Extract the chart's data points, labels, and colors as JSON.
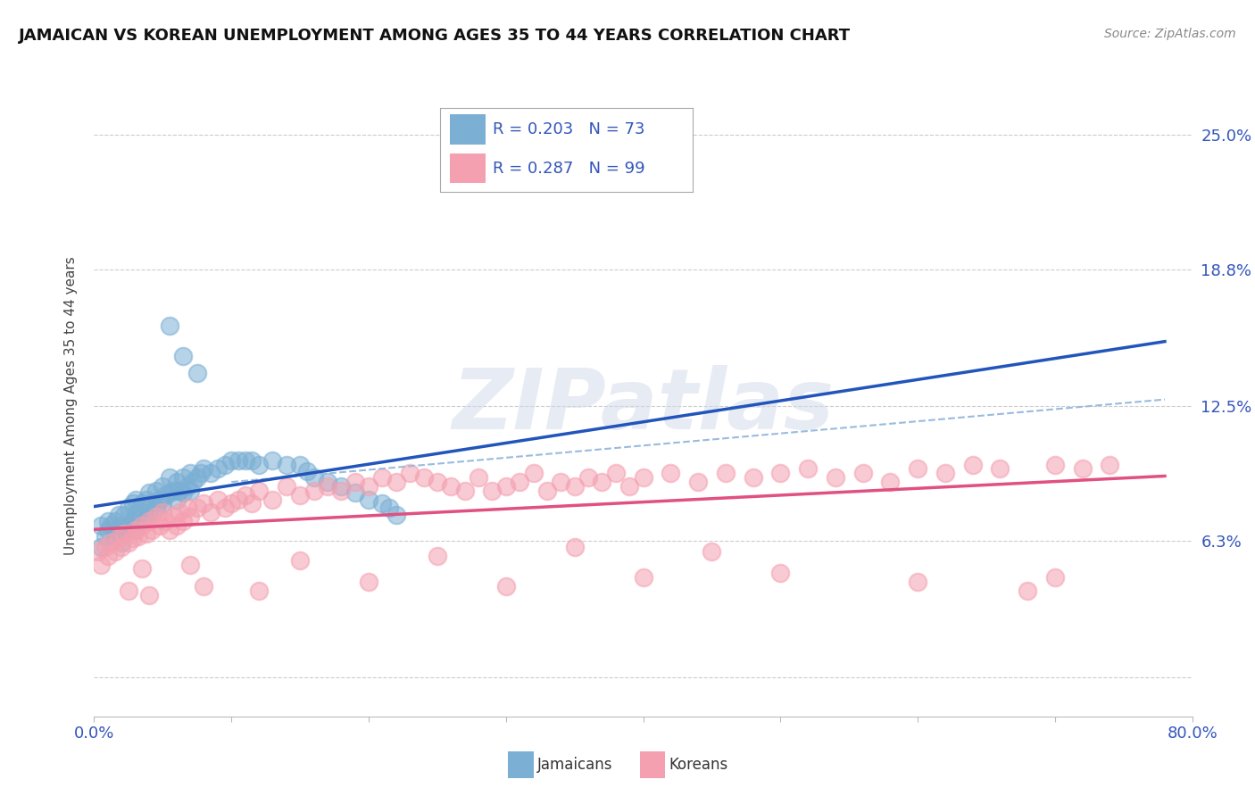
{
  "title": "JAMAICAN VS KOREAN UNEMPLOYMENT AMONG AGES 35 TO 44 YEARS CORRELATION CHART",
  "source": "Source: ZipAtlas.com",
  "ylabel": "Unemployment Among Ages 35 to 44 years",
  "xlim": [
    0.0,
    0.8
  ],
  "ylim": [
    -0.018,
    0.268
  ],
  "ytick_positions": [
    0.0,
    0.063,
    0.125,
    0.188,
    0.25
  ],
  "ytick_labels_right": [
    "",
    "6.3%",
    "12.5%",
    "18.8%",
    "25.0%"
  ],
  "jamaican_color": "#7BAFD4",
  "korean_color": "#F4A0B0",
  "trend_jamaican_color": "#2255BB",
  "trend_korean_color": "#E05080",
  "dashed_line_color": "#99BBDD",
  "jamaican_R": 0.203,
  "jamaican_N": 73,
  "korean_R": 0.287,
  "korean_N": 99,
  "background_color": "#FFFFFF",
  "grid_color": "#CCCCCC",
  "title_color": "#111111",
  "source_color": "#888888",
  "axis_label_color": "#3355BB",
  "tick_label_color": "#3355BB"
}
